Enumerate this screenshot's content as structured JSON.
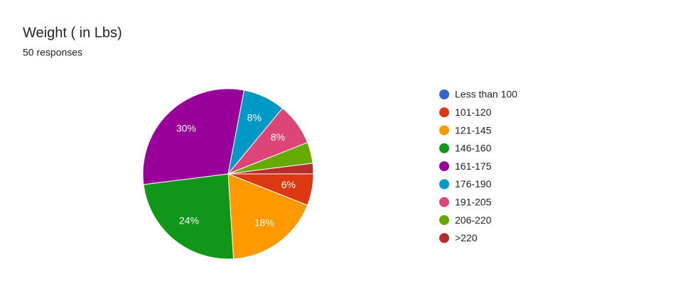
{
  "chart_data": {
    "type": "pie",
    "title": "Weight ( in Lbs)",
    "subtitle": "50 responses",
    "categories": [
      "Less than 100",
      "101-120",
      "121-145",
      "146-160",
      "161-175",
      "176-190",
      "191-205",
      "206-220",
      ">220"
    ],
    "values": [
      0,
      6,
      18,
      24,
      30,
      8,
      8,
      4,
      2
    ],
    "value_labels": [
      null,
      "6%",
      "18%",
      "24%",
      "30%",
      "8%",
      "8%",
      null,
      null
    ],
    "colors": [
      "#3366cc",
      "#dc3912",
      "#ff9900",
      "#109618",
      "#990099",
      "#0099c6",
      "#dd4477",
      "#66aa00",
      "#b82e2e"
    ],
    "legend": "right"
  }
}
